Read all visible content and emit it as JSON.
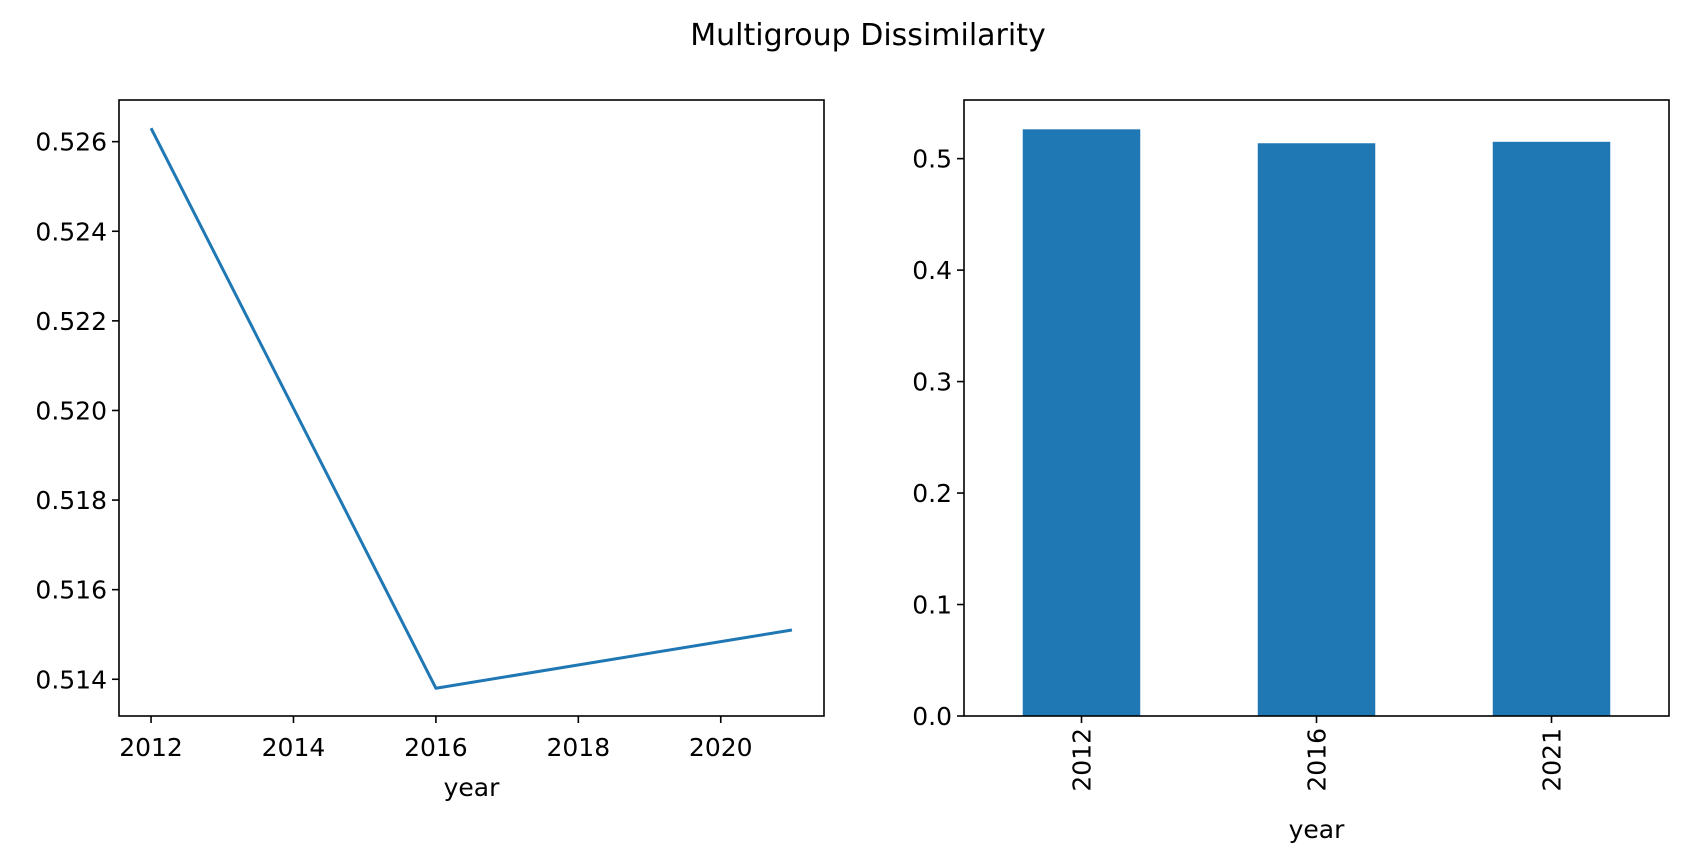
{
  "figure": {
    "title": "Multigroup Dissimilarity"
  },
  "colors": {
    "series": "#1f77b4",
    "axes": "#000000",
    "background": "#ffffff"
  },
  "chart_data": [
    {
      "type": "line",
      "x": [
        2012,
        2016,
        2021
      ],
      "series": [
        {
          "values": [
            0.5263,
            0.5138,
            0.5151
          ]
        }
      ],
      "xlabel": "year",
      "ylabel": "",
      "xlim": [
        2011.55,
        2021.45
      ],
      "ylim": [
        0.51318,
        0.52693
      ],
      "xticks": [
        2012,
        2014,
        2016,
        2018,
        2020
      ],
      "yticks": [
        0.514,
        0.516,
        0.518,
        0.52,
        0.522,
        0.524,
        0.526
      ],
      "ytick_labels": [
        "0.514",
        "0.516",
        "0.518",
        "0.520",
        "0.522",
        "0.524",
        "0.526"
      ],
      "grid": false
    },
    {
      "type": "bar",
      "categories": [
        "2012",
        "2016",
        "2021"
      ],
      "values": [
        0.5263,
        0.5138,
        0.5151
      ],
      "xlabel": "year",
      "ylabel": "",
      "ylim": [
        0,
        0.5526
      ],
      "yticks": [
        0.0,
        0.1,
        0.2,
        0.3,
        0.4,
        0.5
      ],
      "ytick_labels": [
        "0.0",
        "0.1",
        "0.2",
        "0.3",
        "0.4",
        "0.5"
      ],
      "category_label_rotation": "vertical",
      "grid": false
    }
  ]
}
